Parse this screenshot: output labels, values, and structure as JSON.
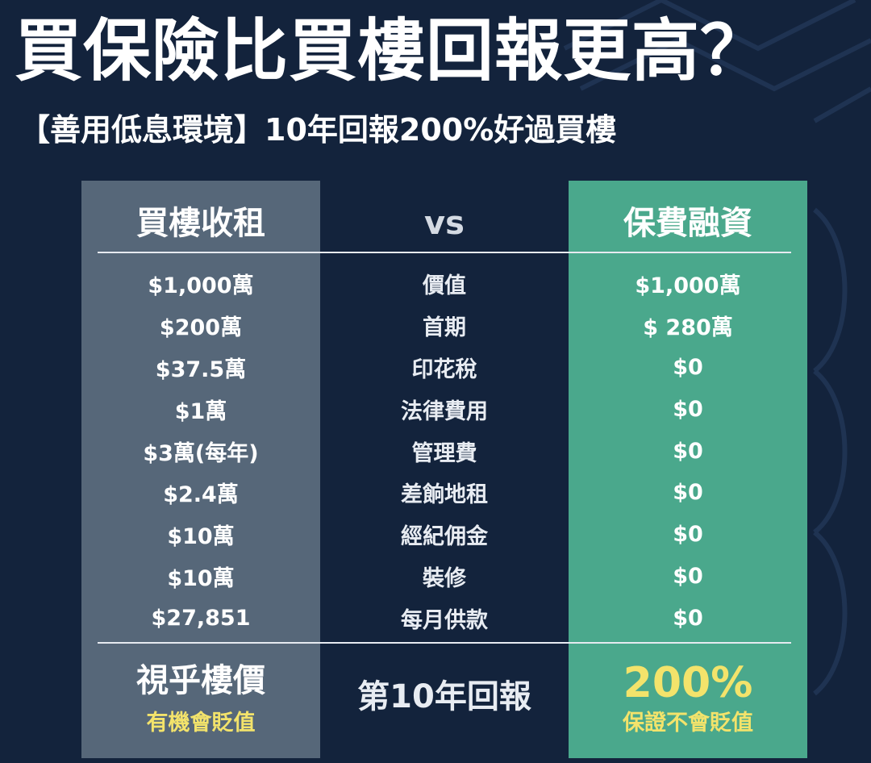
{
  "title": "買保險比買樓回報更高？",
  "subtitle": "【善用低息環境】10年回報200%好過買樓",
  "table": {
    "headers": {
      "left": "買樓收租",
      "middle": "vs",
      "right": "保費融資"
    },
    "rows": [
      {
        "left": "$1,000萬",
        "middle": "價值",
        "right": "$1,000萬"
      },
      {
        "left": "$200萬",
        "middle": "首期",
        "right": "$ 280萬"
      },
      {
        "left": "$37.5萬",
        "middle": "印花稅",
        "right": "$0"
      },
      {
        "left": "$1萬",
        "middle": "法律費用",
        "right": "$0"
      },
      {
        "left": "$3萬(每年)",
        "middle": "管理費",
        "right": "$0"
      },
      {
        "left": "$2.4萬",
        "middle": "差餉地租",
        "right": "$0"
      },
      {
        "left": "$10萬",
        "middle": "經紀佣金",
        "right": "$0"
      },
      {
        "left": "$10萬",
        "middle": "裝修",
        "right": "$0"
      },
      {
        "left": "$27,851",
        "middle": "每月供款",
        "right": "$0"
      }
    ],
    "footer": {
      "left_main": "視乎樓價",
      "left_sub": "有機會貶值",
      "middle": "第10年回報",
      "right_main": "200%",
      "right_sub": "保證不會貶值"
    }
  },
  "colors": {
    "background": "#13233c",
    "left_column": "#566779",
    "right_column": "#4aa88c",
    "highlight_yellow": "#f3e36b"
  }
}
